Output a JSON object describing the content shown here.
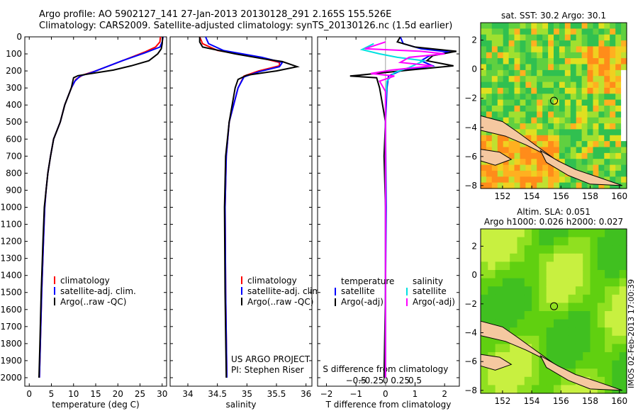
{
  "header": {
    "line1": "Argo profile: AO 5902127_141 27-Jan-2013 20130128_291 2.165S 155.526E",
    "line2": "Climatology: CARS2009. Satellite-adjusted climatology: synTS_20130126.nc (1.5d earlier)"
  },
  "footer_stamp": "IMOS 02-Feb-2013 17:00:39",
  "colors": {
    "climatology": "#ff0000",
    "satellite": "#0000ff",
    "argo": "#000000",
    "sat_diff_s": "#00e0e0",
    "argo_diff_s": "#ff00ff",
    "land": "#f5c8a0"
  },
  "chart_data": [
    {
      "type": "line",
      "name": "temperature-profile",
      "xlabel": "temperature (deg C)",
      "ylabel": "",
      "xlim": [
        -1,
        31
      ],
      "ylim": [
        2050,
        0
      ],
      "xticks": [
        0,
        5,
        10,
        15,
        20,
        25,
        30
      ],
      "xtick_labels": [
        "0",
        "5",
        "10",
        "15",
        "20",
        "25",
        "30"
      ],
      "yticks": [
        0,
        100,
        200,
        300,
        400,
        500,
        600,
        700,
        800,
        900,
        1000,
        1100,
        1200,
        1300,
        1400,
        1500,
        1600,
        1700,
        1800,
        1900,
        2000
      ],
      "ytick_labels": [
        "0",
        "100",
        "200",
        "300",
        "400",
        "500",
        "600",
        "700",
        "800",
        "900",
        "1000",
        "1100",
        "1200",
        "1300",
        "1400",
        "1500",
        "1600",
        "1700",
        "1800",
        "1900",
        "2000"
      ],
      "legend": [
        "climatology",
        "satellite-adj. clim.",
        "Argo(..raw -QC)"
      ],
      "series": [
        {
          "name": "climatology",
          "color": "#ff0000",
          "points": [
            [
              29.6,
              0
            ],
            [
              29.5,
              30
            ],
            [
              28.5,
              60
            ],
            [
              26,
              90
            ],
            [
              22,
              130
            ],
            [
              18,
              170
            ],
            [
              15,
              200
            ],
            [
              12,
              225
            ],
            [
              10.5,
              250
            ],
            [
              9.5,
              300
            ],
            [
              8,
              400
            ],
            [
              7,
              500
            ],
            [
              5.5,
              600
            ],
            [
              4.8,
              700
            ],
            [
              4.2,
              800
            ],
            [
              3.8,
              900
            ],
            [
              3.5,
              1000
            ],
            [
              3.2,
              1200
            ],
            [
              2.8,
              1500
            ],
            [
              2.5,
              1800
            ],
            [
              2.3,
              2000
            ]
          ]
        },
        {
          "name": "satellite-adj. clim.",
          "color": "#0000ff",
          "points": [
            [
              30.2,
              0
            ],
            [
              30,
              30
            ],
            [
              29.5,
              60
            ],
            [
              26,
              95
            ],
            [
              21,
              140
            ],
            [
              17,
              180
            ],
            [
              14,
              210
            ],
            [
              11.5,
              230
            ],
            [
              10.3,
              260
            ],
            [
              9.5,
              300
            ],
            [
              8,
              400
            ],
            [
              7,
              500
            ],
            [
              5.5,
              600
            ],
            [
              4.8,
              700
            ],
            [
              4.2,
              800
            ],
            [
              3.8,
              900
            ],
            [
              3.5,
              1000
            ],
            [
              3.2,
              1200
            ],
            [
              2.8,
              1500
            ],
            [
              2.5,
              1800
            ],
            [
              2.3,
              2000
            ]
          ]
        },
        {
          "name": "Argo(..raw -QC)",
          "color": "#000000",
          "points": [
            [
              30.1,
              0
            ],
            [
              30,
              40
            ],
            [
              29.8,
              70
            ],
            [
              29,
              100
            ],
            [
              27,
              140
            ],
            [
              23,
              170
            ],
            [
              19,
              195
            ],
            [
              14,
              215
            ],
            [
              11,
              228
            ],
            [
              10,
              240
            ],
            [
              9.5,
              300
            ],
            [
              8,
              400
            ],
            [
              7,
              500
            ],
            [
              5.5,
              600
            ],
            [
              4.8,
              700
            ],
            [
              4.2,
              800
            ],
            [
              3.8,
              900
            ],
            [
              3.4,
              1000
            ],
            [
              3.1,
              1200
            ],
            [
              2.7,
              1500
            ],
            [
              2.4,
              1800
            ],
            [
              2.2,
              2000
            ]
          ]
        }
      ]
    },
    {
      "type": "line",
      "name": "salinity-profile",
      "xlabel": "salinity",
      "xlim": [
        33.7,
        36.1
      ],
      "ylim": [
        2050,
        0
      ],
      "xticks": [
        34,
        34.5,
        35,
        35.5,
        36
      ],
      "xtick_labels": [
        "34",
        "34.5",
        "35",
        "35.5",
        "36"
      ],
      "legend": [
        "climatology",
        "satellite-adj. clim.",
        "Argo(..raw -QC)"
      ],
      "annotation": [
        "US ARGO PROJECT",
        "PI: Stephen Riser"
      ],
      "series": [
        {
          "name": "climatology",
          "color": "#ff0000",
          "points": [
            [
              34.2,
              0
            ],
            [
              34.25,
              40
            ],
            [
              34.5,
              80
            ],
            [
              35.2,
              120
            ],
            [
              35.55,
              150
            ],
            [
              35.55,
              170
            ],
            [
              35.2,
              200
            ],
            [
              34.95,
              230
            ],
            [
              34.85,
              300
            ],
            [
              34.7,
              500
            ],
            [
              34.65,
              700
            ],
            [
              34.63,
              1000
            ],
            [
              34.64,
              1500
            ],
            [
              34.66,
              2000
            ]
          ]
        },
        {
          "name": "satellite-adj. clim.",
          "color": "#0000ff",
          "points": [
            [
              34.3,
              0
            ],
            [
              34.35,
              40
            ],
            [
              34.6,
              80
            ],
            [
              35.25,
              120
            ],
            [
              35.6,
              150
            ],
            [
              35.55,
              175
            ],
            [
              35.2,
              205
            ],
            [
              34.95,
              235
            ],
            [
              34.85,
              300
            ],
            [
              34.7,
              500
            ],
            [
              34.65,
              700
            ],
            [
              34.63,
              1000
            ],
            [
              34.64,
              1500
            ],
            [
              34.66,
              2000
            ]
          ]
        },
        {
          "name": "Argo(..raw -QC)",
          "color": "#000000",
          "points": [
            [
              34.2,
              0
            ],
            [
              34.2,
              30
            ],
            [
              34.25,
              60
            ],
            [
              34.8,
              100
            ],
            [
              35.3,
              130
            ],
            [
              35.6,
              145
            ],
            [
              35.85,
              175
            ],
            [
              35.5,
              200
            ],
            [
              35.0,
              225
            ],
            [
              34.85,
              250
            ],
            [
              34.8,
              300
            ],
            [
              34.7,
              500
            ],
            [
              34.64,
              700
            ],
            [
              34.62,
              1000
            ],
            [
              34.63,
              1500
            ],
            [
              34.65,
              2000
            ]
          ]
        }
      ]
    },
    {
      "type": "line",
      "name": "difference-profile",
      "xlabel": "T difference from climatology",
      "xlabel_top": "S difference from climatology",
      "xlim": [
        -2.3,
        2.5
      ],
      "ylim": [
        2050,
        0
      ],
      "xticks": [
        -2,
        -1,
        0,
        1,
        2
      ],
      "xtick_labels": [
        "−2",
        "−1",
        "0",
        "1",
        "2"
      ],
      "sticks_pos": [
        -1.0,
        -0.5,
        0,
        0.5,
        1.0
      ],
      "sticks": [
        "−0.5",
        "−0.25",
        "0",
        "0.25",
        "0.5"
      ],
      "legend_t_title": "temperature",
      "legend_s_title": "salinity",
      "legend_t": [
        "satellite",
        "Argo(-adj)"
      ],
      "legend_s": [
        "satellite",
        "Argo(-adj)"
      ],
      "series": [
        {
          "name": "T satellite",
          "color": "#0000ff",
          "points": [
            [
              0.5,
              0
            ],
            [
              0.6,
              40
            ],
            [
              1.2,
              70
            ],
            [
              2.2,
              90
            ],
            [
              1.5,
              110
            ],
            [
              1.2,
              140
            ],
            [
              1.6,
              170
            ],
            [
              0.5,
              200
            ],
            [
              0.1,
              230
            ],
            [
              0.05,
              300
            ],
            [
              0,
              500
            ],
            [
              0.02,
              1000
            ],
            [
              0,
              1500
            ],
            [
              0,
              2000
            ]
          ]
        },
        {
          "name": "T Argo",
          "color": "#000000",
          "points": [
            [
              0.5,
              0
            ],
            [
              0.4,
              30
            ],
            [
              1.0,
              60
            ],
            [
              2.4,
              85
            ],
            [
              1.6,
              110
            ],
            [
              1.4,
              140
            ],
            [
              2.3,
              170
            ],
            [
              0.8,
              195
            ],
            [
              -0.6,
              220
            ],
            [
              -1.2,
              230
            ],
            [
              -0.3,
              240
            ],
            [
              -0.2,
              300
            ],
            [
              -0.1,
              400
            ],
            [
              0,
              500
            ],
            [
              -0.05,
              700
            ],
            [
              0,
              1000
            ],
            [
              0,
              1500
            ],
            [
              -0.05,
              2000
            ]
          ]
        },
        {
          "name": "S satellite",
          "color": "#00e0e0",
          "points": [
            [
              -0.4,
              40
            ],
            [
              -0.8,
              75
            ],
            [
              -0.2,
              100
            ],
            [
              0.4,
              120
            ],
            [
              1.3,
              140
            ],
            [
              0.8,
              180
            ],
            [
              0.3,
              210
            ],
            [
              0.05,
              260
            ],
            [
              0,
              400
            ],
            [
              0,
              800
            ],
            [
              0,
              2000
            ]
          ]
        },
        {
          "name": "S Argo",
          "color": "#ff00ff",
          "points": [
            [
              0,
              30
            ],
            [
              -0.7,
              70
            ],
            [
              1.2,
              85
            ],
            [
              2.0,
              100
            ],
            [
              0.8,
              120
            ],
            [
              0.5,
              150
            ],
            [
              1.6,
              170
            ],
            [
              0.2,
              195
            ],
            [
              -0.5,
              215
            ],
            [
              0.3,
              230
            ],
            [
              -0.2,
              260
            ],
            [
              0,
              320
            ],
            [
              0,
              800
            ],
            [
              0,
              2000
            ]
          ]
        }
      ]
    },
    {
      "type": "heatmap",
      "name": "sst-map",
      "title": "sat. SST: 30.2  Argo: 30.1",
      "xlim": [
        150.5,
        160.5
      ],
      "ylim": [
        -8.2,
        3.2
      ],
      "xticks": [
        152,
        154,
        156,
        158,
        160
      ],
      "xtick_labels": [
        "152",
        "154",
        "156",
        "158",
        "160"
      ],
      "yticks": [
        2,
        0,
        -2,
        -4,
        -6,
        -8
      ],
      "ytick_labels": [
        "2",
        "0",
        "−2",
        "−4",
        "−6",
        "−8"
      ],
      "marker": [
        155.526,
        -2.165
      ]
    },
    {
      "type": "heatmap",
      "name": "sla-map",
      "title_lines": [
        "Altim. SLA: 0.051",
        "Argo h1000: 0.026 h2000: 0.027"
      ],
      "xlim": [
        150.5,
        160.5
      ],
      "ylim": [
        -8.2,
        3.2
      ],
      "xticks": [
        152,
        154,
        156,
        158,
        160
      ],
      "xtick_labels": [
        "152",
        "154",
        "156",
        "158",
        "160"
      ],
      "yticks": [
        2,
        0,
        -2,
        -4,
        -6,
        -8
      ],
      "ytick_labels": [
        "2",
        "0",
        "−2",
        "−4",
        "−6",
        "−8"
      ],
      "marker": [
        155.526,
        -2.165
      ]
    }
  ]
}
